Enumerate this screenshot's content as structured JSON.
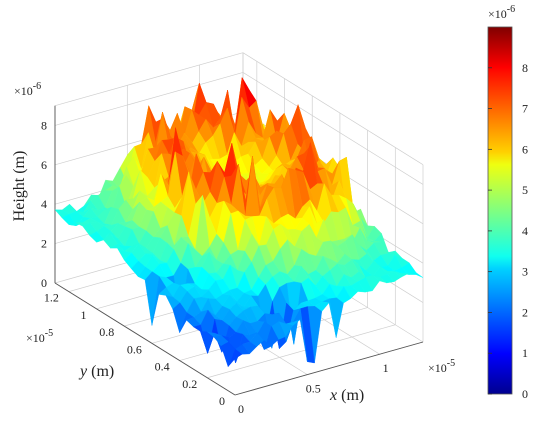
{
  "chart_data": {
    "type": "surface3d",
    "title": "",
    "colormap": "jet",
    "x_axis": {
      "label_var": "x",
      "label_unit": " (m)",
      "multiplier": "×10",
      "multiplier_exp": "-5",
      "range": [
        0,
        1.3
      ],
      "ticks": [
        {
          "v": 0,
          "label": "0"
        },
        {
          "v": 0.5,
          "label": "0.5"
        },
        {
          "v": 1,
          "label": "1"
        }
      ]
    },
    "y_axis": {
      "label_var": "y",
      "label_unit": " (m)",
      "multiplier": "×10",
      "multiplier_exp": "-5",
      "range": [
        0,
        1.3
      ],
      "ticks": [
        {
          "v": 0,
          "label": "0"
        },
        {
          "v": 0.2,
          "label": "0.2"
        },
        {
          "v": 0.4,
          "label": "0.4"
        },
        {
          "v": 0.6,
          "label": "0.6"
        },
        {
          "v": 0.8,
          "label": "0.8"
        },
        {
          "v": 1,
          "label": "1"
        },
        {
          "v": 1.2,
          "label": "1.2"
        }
      ]
    },
    "z_axis": {
      "label": "Height (m)",
      "multiplier": "×10",
      "multiplier_exp": "-6",
      "range": [
        0,
        9
      ],
      "ticks": [
        {
          "v": 0,
          "label": "0"
        },
        {
          "v": 2,
          "label": "2"
        },
        {
          "v": 4,
          "label": "4"
        },
        {
          "v": 6,
          "label": "6"
        },
        {
          "v": 8,
          "label": "8"
        }
      ]
    },
    "colorbar": {
      "multiplier": "×10",
      "multiplier_exp": "-6",
      "range": [
        0,
        9
      ],
      "ticks": [
        {
          "v": 0,
          "label": "0"
        },
        {
          "v": 1,
          "label": "1"
        },
        {
          "v": 2,
          "label": "2"
        },
        {
          "v": 3,
          "label": "3"
        },
        {
          "v": 4,
          "label": "4"
        },
        {
          "v": 5,
          "label": "5"
        },
        {
          "v": 6,
          "label": "6"
        },
        {
          "v": 7,
          "label": "7"
        },
        {
          "v": 8,
          "label": "8"
        }
      ]
    },
    "surface": {
      "grid_size": 26,
      "base_height": 3.5,
      "ring_center": [
        0.65,
        0.65
      ],
      "ring_radius": 0.32,
      "ring_width": 0.16,
      "ring_peak_height": 7.3,
      "center_height": 5.3,
      "noise_amplitude": 0.6,
      "front_spike_min": 0.4
    },
    "grid": true
  }
}
